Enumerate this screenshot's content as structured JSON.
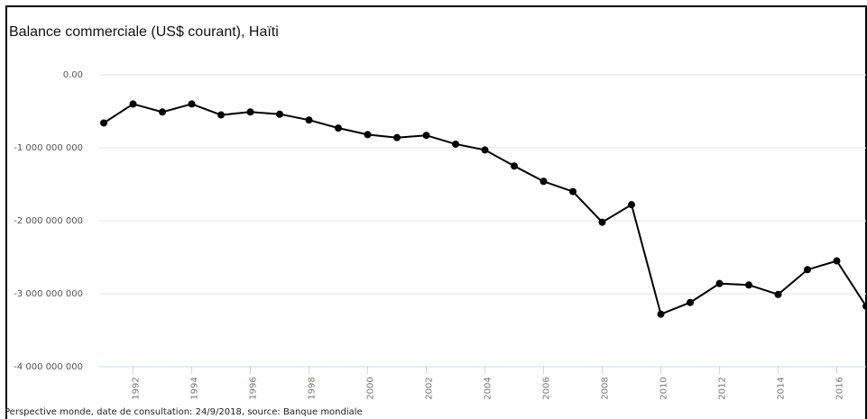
{
  "chart_data": {
    "type": "line",
    "title": "Balance commerciale (US$ courant), Haïti",
    "xlabel": "",
    "ylabel": "",
    "ylim": [
      -4000000000,
      0
    ],
    "xlim": [
      1991,
      2017
    ],
    "yticks": [
      0,
      -1000000000,
      -2000000000,
      -3000000000,
      -4000000000
    ],
    "ytick_labels": [
      "0.00",
      "-1 000 000 000",
      "-2 000 000 000",
      "-3 000 000 000",
      "-4 000 000 000"
    ],
    "xticks": [
      1992,
      1994,
      1996,
      1998,
      2000,
      2002,
      2004,
      2006,
      2008,
      2010,
      2012,
      2014,
      2016
    ],
    "xtick_labels": [
      "1992",
      "1994",
      "1996",
      "1998",
      "2000",
      "2002",
      "2004",
      "2006",
      "2008",
      "2010",
      "2012",
      "2014",
      "2016"
    ],
    "grid": true,
    "line_color": "#000000",
    "grid_color": "#e6e6e6",
    "series": [
      {
        "x": [
          1991,
          1992,
          1993,
          1994,
          1995,
          1996,
          1997,
          1998,
          1999,
          2000,
          2001,
          2002,
          2003,
          2004,
          2005,
          2006,
          2007,
          2008,
          2009,
          2010,
          2011,
          2012,
          2013,
          2014,
          2015,
          2016,
          2017
        ],
        "values": [
          -660000000,
          -400000000,
          -510000000,
          -400000000,
          -550000000,
          -510000000,
          -540000000,
          -620000000,
          -730000000,
          -820000000,
          -860000000,
          -830000000,
          -950000000,
          -1030000000,
          -1250000000,
          -1460000000,
          -1600000000,
          -2020000000,
          -1780000000,
          -3280000000,
          -3120000000,
          -2860000000,
          -2880000000,
          -3010000000,
          -2670000000,
          -2550000000,
          -3170000000
        ]
      }
    ]
  },
  "footer": "Perspective monde, date de consultation: 24/9/2018, source: Banque mondiale"
}
